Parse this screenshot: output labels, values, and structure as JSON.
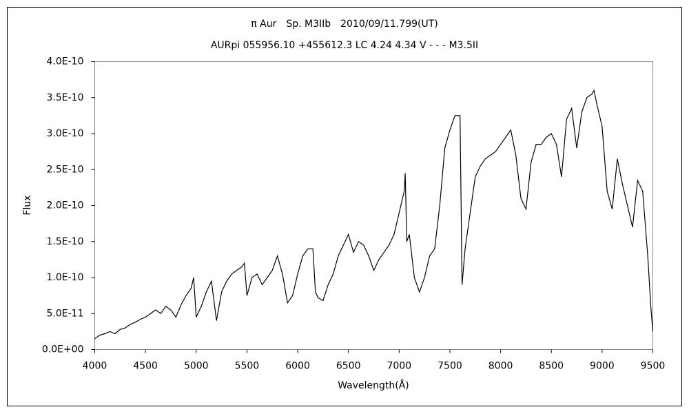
{
  "chart_data": {
    "type": "line",
    "title": "π Aur　Sp. M3IIb　2010/09/11.799(UT)",
    "subtitle": "AURpi 055956.10 +455612.3 LC 4.24 4.34 V - - - M3.5II",
    "xlabel": "Wavelength(Å)",
    "ylabel": "Flux",
    "color": "#000000",
    "grid": false,
    "x": [
      4000,
      4050,
      4100,
      4150,
      4200,
      4250,
      4300,
      4350,
      4400,
      4450,
      4500,
      4550,
      4600,
      4650,
      4700,
      4750,
      4800,
      4850,
      4900,
      4950,
      4975,
      5000,
      5050,
      5100,
      5150,
      5200,
      5250,
      5300,
      5350,
      5400,
      5450,
      5475,
      5500,
      5550,
      5600,
      5650,
      5700,
      5750,
      5800,
      5850,
      5900,
      5950,
      6000,
      6050,
      6100,
      6150,
      6175,
      6200,
      6250,
      6300,
      6350,
      6400,
      6450,
      6500,
      6550,
      6600,
      6650,
      6700,
      6750,
      6800,
      6850,
      6900,
      6950,
      7000,
      7050,
      7060,
      7075,
      7100,
      7150,
      7200,
      7250,
      7300,
      7350,
      7400,
      7450,
      7500,
      7550,
      7600,
      7620,
      7650,
      7700,
      7750,
      7800,
      7850,
      7900,
      7950,
      8000,
      8050,
      8100,
      8150,
      8200,
      8250,
      8300,
      8350,
      8400,
      8450,
      8500,
      8550,
      8600,
      8650,
      8700,
      8750,
      8800,
      8850,
      8900,
      8920,
      8950,
      9000,
      9050,
      9100,
      9150,
      9200,
      9250,
      9300,
      9350,
      9400,
      9450,
      9480,
      9500
    ],
    "values": [
      1.5e-11,
      2e-11,
      2.2e-11,
      2.5e-11,
      2.2e-11,
      2.8e-11,
      3e-11,
      3.5e-11,
      3.8e-11,
      4.2e-11,
      4.5e-11,
      5e-11,
      5.5e-11,
      5e-11,
      6e-11,
      5.5e-11,
      4.5e-11,
      6.2e-11,
      7.5e-11,
      8.5e-11,
      1e-10,
      4.5e-11,
      6e-11,
      8e-11,
      9.5e-11,
      4e-11,
      8e-11,
      9.5e-11,
      1.05e-10,
      1.1e-10,
      1.15e-10,
      1.2e-10,
      7.5e-11,
      1e-10,
      1.05e-10,
      9e-11,
      1e-10,
      1.1e-10,
      1.3e-10,
      1.05e-10,
      6.5e-11,
      7.5e-11,
      1.05e-10,
      1.3e-10,
      1.4e-10,
      1.4e-10,
      8e-11,
      7.2e-11,
      6.8e-11,
      9e-11,
      1.05e-10,
      1.3e-10,
      1.45e-10,
      1.6e-10,
      1.35e-10,
      1.5e-10,
      1.45e-10,
      1.3e-10,
      1.1e-10,
      1.25e-10,
      1.35e-10,
      1.45e-10,
      1.6e-10,
      1.9e-10,
      2.2e-10,
      2.45e-10,
      1.5e-10,
      1.6e-10,
      1e-10,
      8e-11,
      1e-10,
      1.3e-10,
      1.4e-10,
      2e-10,
      2.8e-10,
      3.05e-10,
      3.25e-10,
      3.25e-10,
      9e-11,
      1.4e-10,
      1.9e-10,
      2.4e-10,
      2.55e-10,
      2.65e-10,
      2.7e-10,
      2.75e-10,
      2.85e-10,
      2.95e-10,
      3.05e-10,
      2.7e-10,
      2.1e-10,
      1.95e-10,
      2.6e-10,
      2.85e-10,
      2.85e-10,
      2.95e-10,
      3e-10,
      2.85e-10,
      2.4e-10,
      3.2e-10,
      3.35e-10,
      2.8e-10,
      3.3e-10,
      3.5e-10,
      3.55e-10,
      3.6e-10,
      3.4e-10,
      3.1e-10,
      2.2e-10,
      1.95e-10,
      2.65e-10,
      2.3e-10,
      2e-10,
      1.7e-10,
      2.35e-10,
      2.2e-10,
      1.3e-10,
      6e-11,
      2.5e-11
    ],
    "xlim": [
      4000,
      9500
    ],
    "xticks": [
      4000,
      4500,
      5000,
      5500,
      6000,
      6500,
      7000,
      7500,
      8000,
      8500,
      9000,
      9500
    ],
    "ylim": [
      0,
      4e-10
    ],
    "yticks": [
      {
        "value": 0,
        "label": "0.0E+00"
      },
      {
        "value": 5e-11,
        "label": "5.0E-11"
      },
      {
        "value": 1e-10,
        "label": "1.0E-10"
      },
      {
        "value": 1.5e-10,
        "label": "1.5E-10"
      },
      {
        "value": 2e-10,
        "label": "2.0E-10"
      },
      {
        "value": 2.5e-10,
        "label": "2.5E-10"
      },
      {
        "value": 3e-10,
        "label": "3.0E-10"
      },
      {
        "value": 3.5e-10,
        "label": "3.5E-10"
      },
      {
        "value": 4e-10,
        "label": "4.0E-10"
      }
    ]
  }
}
